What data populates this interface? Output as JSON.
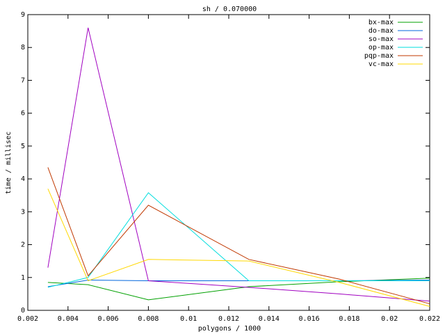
{
  "chart_data": {
    "type": "line",
    "title": "sh / 0.070000",
    "x_label": "polygons / 1000",
    "y_label": "time / millisec",
    "x": [
      0.003,
      0.005,
      0.008,
      0.013,
      0.0175,
      0.022
    ],
    "series": [
      {
        "name": "bx-max",
        "color": "#00a000",
        "values": [
          0.85,
          0.78,
          0.32,
          0.72,
          0.87,
          0.98
        ]
      },
      {
        "name": "do-max",
        "color": "#0066dd",
        "values": [
          0.72,
          0.92,
          0.9,
          0.9,
          0.9,
          0.92
        ]
      },
      {
        "name": "so-max",
        "color": "#a000c0",
        "values": [
          1.3,
          8.6,
          0.9,
          0.7,
          0.5,
          0.28
        ]
      },
      {
        "name": "op-max",
        "color": "#00dddd",
        "values": [
          0.7,
          1.0,
          3.58,
          0.9,
          0.9,
          0.9
        ]
      },
      {
        "name": "pqp-max",
        "color": "#c03800",
        "values": [
          4.35,
          1.05,
          3.2,
          1.55,
          0.95,
          0.2
        ]
      },
      {
        "name": "vc-max",
        "color": "#ffd800",
        "values": [
          3.7,
          0.9,
          1.55,
          1.5,
          0.85,
          0.12
        ]
      }
    ],
    "xlim": [
      0.002,
      0.022
    ],
    "xticks": [
      0.002,
      0.004,
      0.006,
      0.008,
      0.01,
      0.012,
      0.014,
      0.016,
      0.018,
      0.02,
      0.022
    ],
    "ylim": [
      0,
      9
    ],
    "yticks": [
      0,
      1,
      2,
      3,
      4,
      5,
      6,
      7,
      8,
      9
    ],
    "legend": "top-right"
  }
}
